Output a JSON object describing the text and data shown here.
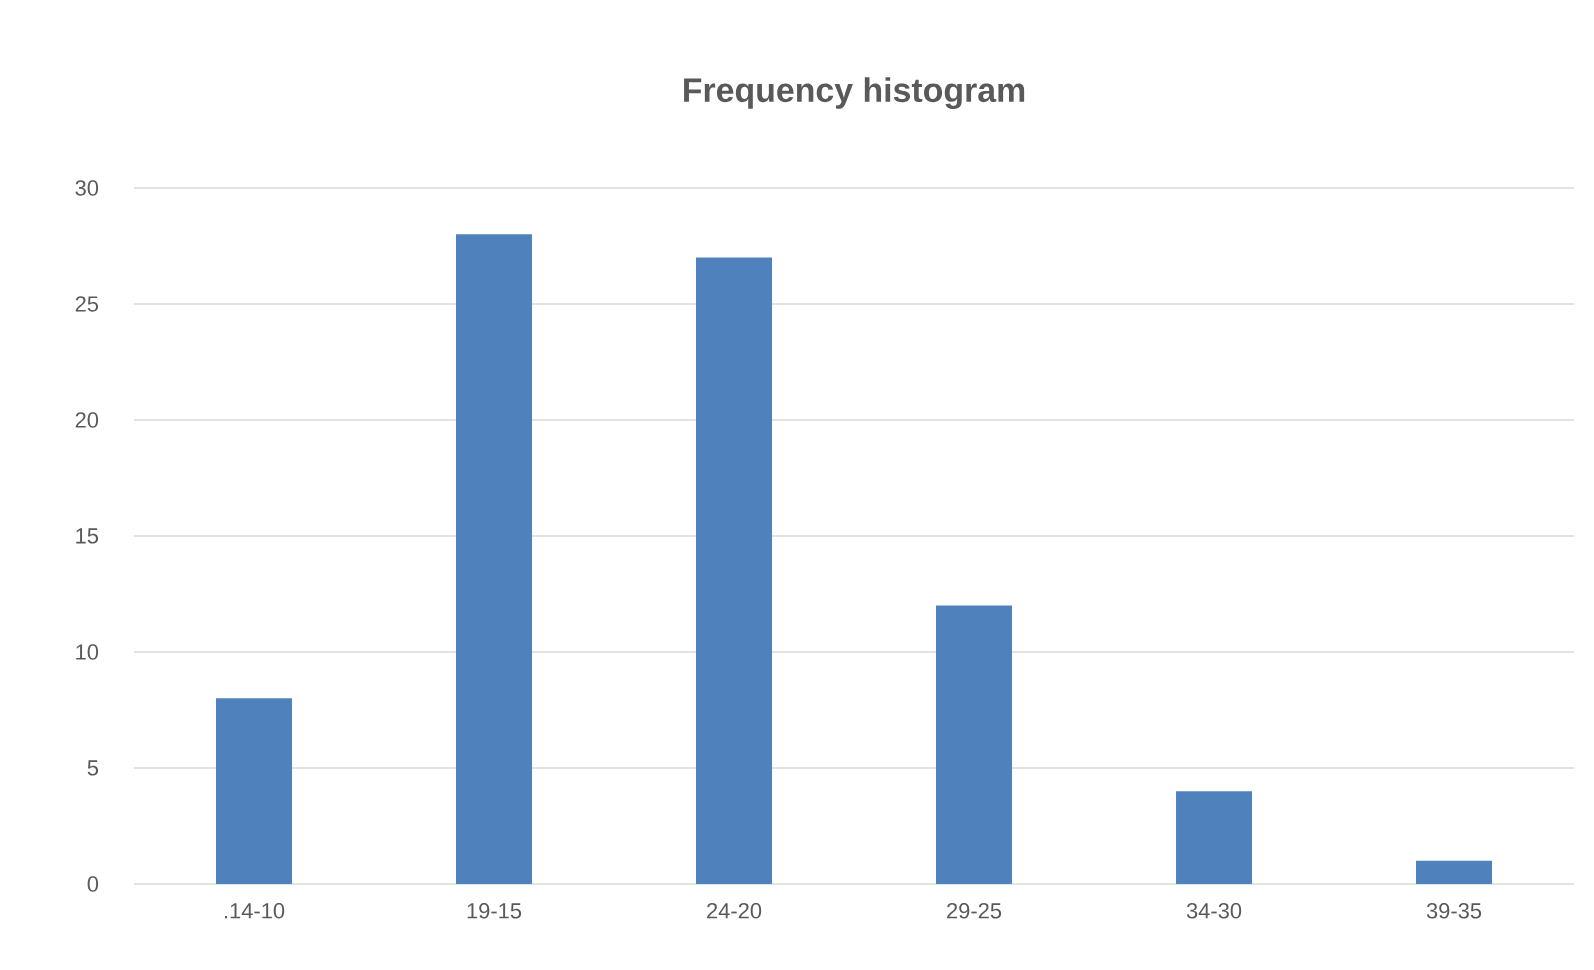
{
  "chart_data": {
    "type": "bar",
    "title": "Frequency histogram",
    "categories": [
      ".14-10",
      "19-15",
      "24-20",
      "29-25",
      "34-30",
      "39-35"
    ],
    "values": [
      8,
      28,
      27,
      12,
      4,
      1
    ],
    "color": "#4f81bd",
    "ylim": [
      0,
      30
    ],
    "yticks": [
      0,
      5,
      10,
      15,
      20,
      25,
      30
    ],
    "grid": "y"
  }
}
